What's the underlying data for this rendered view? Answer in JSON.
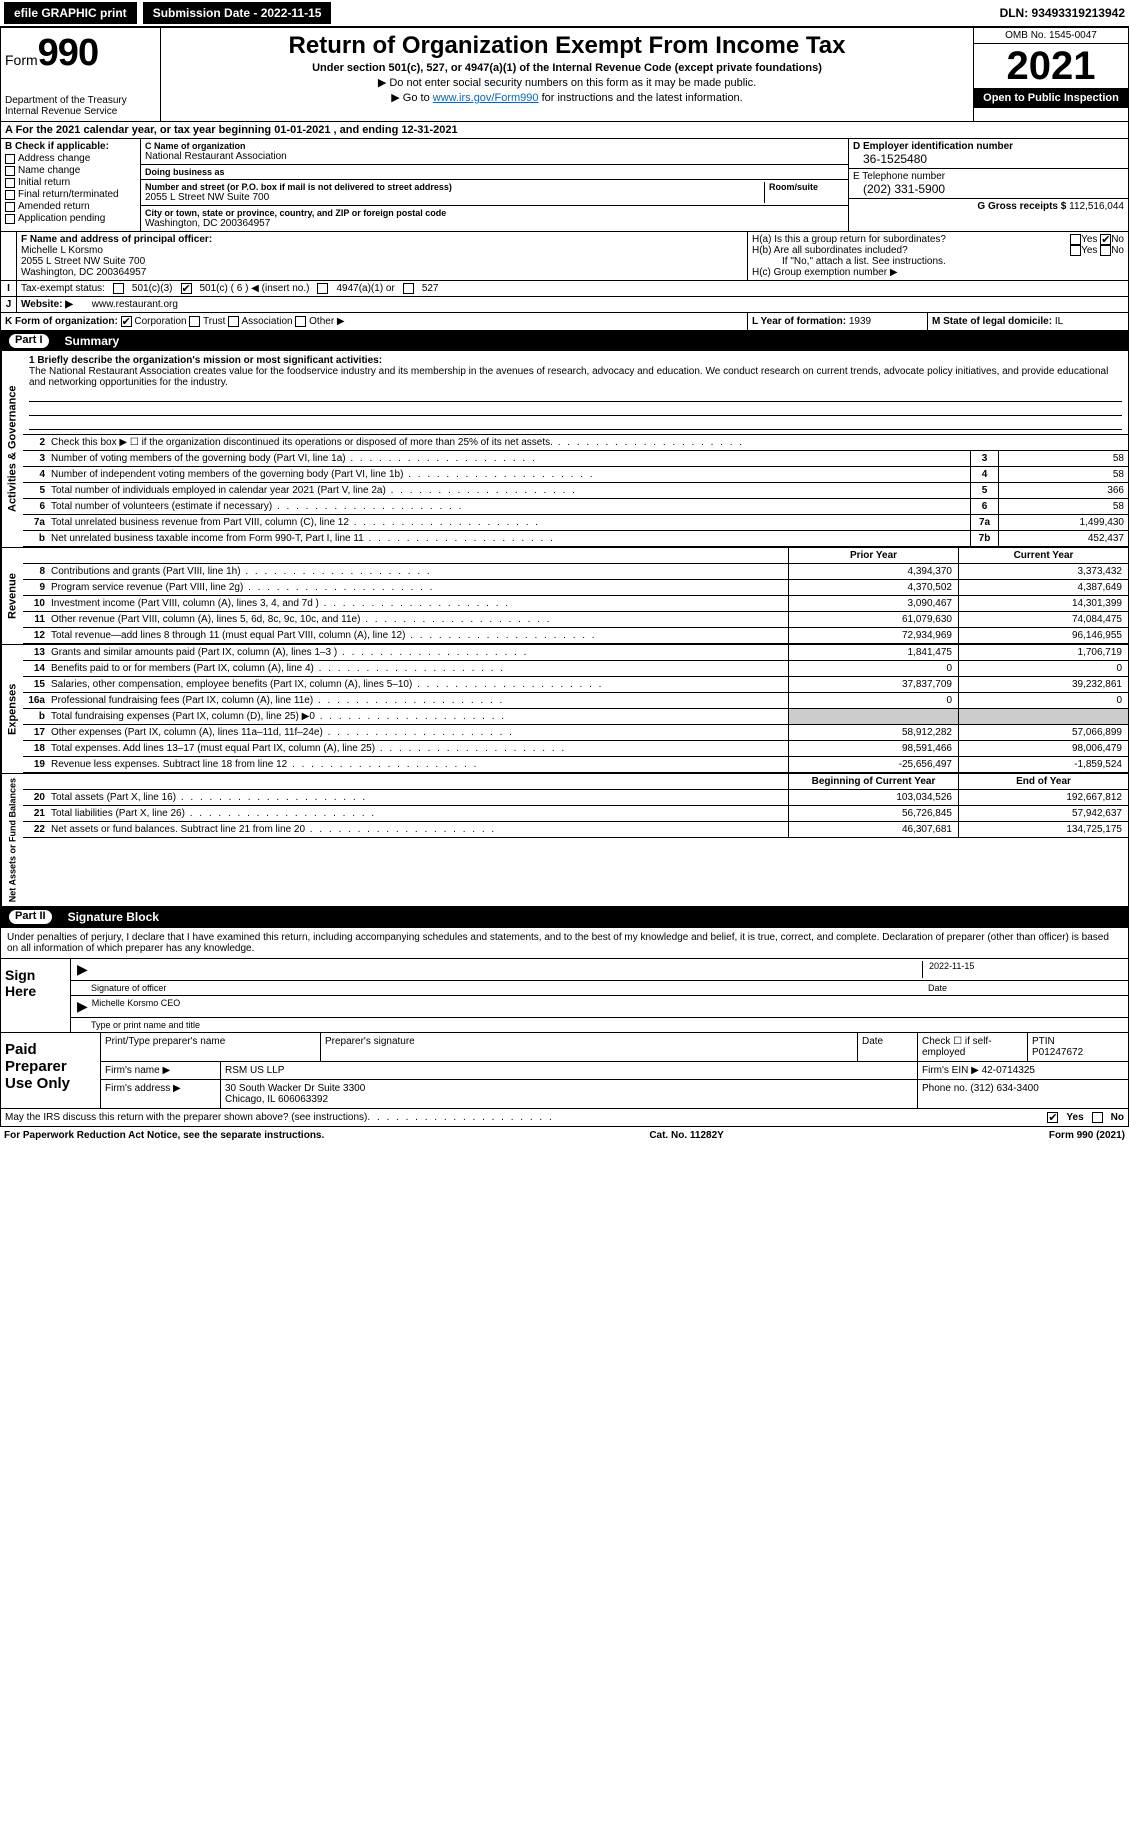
{
  "topbar": {
    "efile_label": "efile GRAPHIC print",
    "submission_label": "Submission Date - 2022-11-15",
    "dln_label": "DLN: 93493319213942"
  },
  "header": {
    "form_label": "Form",
    "form_number": "990",
    "dept": "Department of the Treasury",
    "irs": "Internal Revenue Service",
    "title": "Return of Organization Exempt From Income Tax",
    "subtitle": "Under section 501(c), 527, or 4947(a)(1) of the Internal Revenue Code (except private foundations)",
    "note1": "▶ Do not enter social security numbers on this form as it may be made public.",
    "note2_pre": "▶ Go to ",
    "note2_link": "www.irs.gov/Form990",
    "note2_post": " for instructions and the latest information.",
    "omb": "OMB No. 1545-0047",
    "year": "2021",
    "inspect": "Open to Public Inspection"
  },
  "rowA": "A For the 2021 calendar year, or tax year beginning 01-01-2021    , and ending 12-31-2021",
  "boxB": {
    "title": "B Check if applicable:",
    "items": [
      "Address change",
      "Name change",
      "Initial return",
      "Final return/terminated",
      "Amended return",
      "Application pending"
    ]
  },
  "boxC": {
    "name_lbl": "C Name of organization",
    "name": "National Restaurant Association",
    "dba_lbl": "Doing business as",
    "dba": "",
    "addr_lbl": "Number and street (or P.O. box if mail is not delivered to street address)",
    "room_lbl": "Room/suite",
    "addr": "2055 L Street NW Suite 700",
    "city_lbl": "City or town, state or province, country, and ZIP or foreign postal code",
    "city": "Washington, DC  200364957"
  },
  "boxD": {
    "ein_lbl": "D Employer identification number",
    "ein": "36-1525480",
    "tel_lbl": "E Telephone number",
    "tel": "(202) 331-5900",
    "gross_lbl": "G Gross receipts $",
    "gross": "112,516,044"
  },
  "boxF": {
    "lbl": "F Name and address of principal officer:",
    "name": "Michelle L Korsmo",
    "addr1": "2055 L Street NW Suite 700",
    "addr2": "Washington, DC  200364957"
  },
  "boxH": {
    "a": "H(a)  Is this a group return for subordinates?",
    "b": "H(b)  Are all subordinates included?",
    "b2": "If \"No,\" attach a list. See instructions.",
    "c": "H(c)  Group exemption number ▶",
    "yes": "Yes",
    "no": "No"
  },
  "rowI": {
    "lbl": "Tax-exempt status:",
    "opts": [
      "501(c)(3)",
      "501(c) ( 6 ) ◀ (insert no.)",
      "4947(a)(1) or",
      "527"
    ]
  },
  "rowJ": {
    "lbl": "Website: ▶",
    "val": "www.restaurant.org"
  },
  "rowK": {
    "lbl": "K Form of organization:",
    "opts": [
      "Corporation",
      "Trust",
      "Association",
      "Other ▶"
    ]
  },
  "rowL": {
    "lbl": "L Year of formation:",
    "val": "1939"
  },
  "rowM": {
    "lbl": "M State of legal domicile:",
    "val": "IL"
  },
  "part1": {
    "num": "Part I",
    "title": "Summary"
  },
  "mission": {
    "lbl": "1 Briefly describe the organization's mission or most significant activities:",
    "txt": "The National Restaurant Association creates value for the foodservice industry and its membership in the avenues of research, advocacy and education. We conduct research on current trends, advocate policy initiatives, and provide educational and networking opportunities for the industry."
  },
  "gov_rows": [
    {
      "n": "2",
      "t": "Check this box ▶ ☐  if the organization discontinued its operations or disposed of more than 25% of its net assets.",
      "bn": "",
      "bv": ""
    },
    {
      "n": "3",
      "t": "Number of voting members of the governing body (Part VI, line 1a)",
      "bn": "3",
      "bv": "58"
    },
    {
      "n": "4",
      "t": "Number of independent voting members of the governing body (Part VI, line 1b)",
      "bn": "4",
      "bv": "58"
    },
    {
      "n": "5",
      "t": "Total number of individuals employed in calendar year 2021 (Part V, line 2a)",
      "bn": "5",
      "bv": "366"
    },
    {
      "n": "6",
      "t": "Total number of volunteers (estimate if necessary)",
      "bn": "6",
      "bv": "58"
    },
    {
      "n": "7a",
      "t": "Total unrelated business revenue from Part VIII, column (C), line 12",
      "bn": "7a",
      "bv": "1,499,430"
    },
    {
      "n": "b",
      "t": "Net unrelated business taxable income from Form 990-T, Part I, line 11",
      "bn": "7b",
      "bv": "452,437"
    }
  ],
  "col_hdr": {
    "py": "Prior Year",
    "cy": "Current Year"
  },
  "revenue_rows": [
    {
      "n": "8",
      "t": "Contributions and grants (Part VIII, line 1h)",
      "c1": "4,394,370",
      "c2": "3,373,432"
    },
    {
      "n": "9",
      "t": "Program service revenue (Part VIII, line 2g)",
      "c1": "4,370,502",
      "c2": "4,387,649"
    },
    {
      "n": "10",
      "t": "Investment income (Part VIII, column (A), lines 3, 4, and 7d )",
      "c1": "3,090,467",
      "c2": "14,301,399"
    },
    {
      "n": "11",
      "t": "Other revenue (Part VIII, column (A), lines 5, 6d, 8c, 9c, 10c, and 11e)",
      "c1": "61,079,630",
      "c2": "74,084,475"
    },
    {
      "n": "12",
      "t": "Total revenue—add lines 8 through 11 (must equal Part VIII, column (A), line 12)",
      "c1": "72,934,969",
      "c2": "96,146,955"
    }
  ],
  "expense_rows": [
    {
      "n": "13",
      "t": "Grants and similar amounts paid (Part IX, column (A), lines 1–3 )",
      "c1": "1,841,475",
      "c2": "1,706,719"
    },
    {
      "n": "14",
      "t": "Benefits paid to or for members (Part IX, column (A), line 4)",
      "c1": "0",
      "c2": "0"
    },
    {
      "n": "15",
      "t": "Salaries, other compensation, employee benefits (Part IX, column (A), lines 5–10)",
      "c1": "37,837,709",
      "c2": "39,232,861"
    },
    {
      "n": "16a",
      "t": "Professional fundraising fees (Part IX, column (A), line 11e)",
      "c1": "0",
      "c2": "0"
    },
    {
      "n": "b",
      "t": "Total fundraising expenses (Part IX, column (D), line 25) ▶0",
      "c1": "",
      "c2": ""
    },
    {
      "n": "17",
      "t": "Other expenses (Part IX, column (A), lines 11a–11d, 11f–24e)",
      "c1": "58,912,282",
      "c2": "57,066,899"
    },
    {
      "n": "18",
      "t": "Total expenses. Add lines 13–17 (must equal Part IX, column (A), line 25)",
      "c1": "98,591,466",
      "c2": "98,006,479"
    },
    {
      "n": "19",
      "t": "Revenue less expenses. Subtract line 18 from line 12",
      "c1": "-25,656,497",
      "c2": "-1,859,524"
    }
  ],
  "na_hdr": {
    "c1": "Beginning of Current Year",
    "c2": "End of Year"
  },
  "na_rows": [
    {
      "n": "20",
      "t": "Total assets (Part X, line 16)",
      "c1": "103,034,526",
      "c2": "192,667,812"
    },
    {
      "n": "21",
      "t": "Total liabilities (Part X, line 26)",
      "c1": "56,726,845",
      "c2": "57,942,637"
    },
    {
      "n": "22",
      "t": "Net assets or fund balances. Subtract line 21 from line 20",
      "c1": "46,307,681",
      "c2": "134,725,175"
    }
  ],
  "side_labels": {
    "gov": "Activities & Governance",
    "rev": "Revenue",
    "exp": "Expenses",
    "na": "Net Assets or Fund Balances"
  },
  "part2": {
    "num": "Part II",
    "title": "Signature Block"
  },
  "sig": {
    "penalty": "Under penalties of perjury, I declare that I have examined this return, including accompanying schedules and statements, and to the best of my knowledge and belief, it is true, correct, and complete. Declaration of preparer (other than officer) is based on all information of which preparer has any knowledge.",
    "sign_here": "Sign Here",
    "sig_officer": "Signature of officer",
    "date": "Date",
    "date_val": "2022-11-15",
    "name": "Michelle Korsmo  CEO",
    "name_lbl": "Type or print name and title"
  },
  "prep": {
    "lbl": "Paid Preparer Use Only",
    "h1": "Print/Type preparer's name",
    "h2": "Preparer's signature",
    "h3": "Date",
    "h4": "Check ☐ if self-employed",
    "h5": "PTIN",
    "ptin": "P01247672",
    "firm_lbl": "Firm's name    ▶",
    "firm": "RSM US LLP",
    "ein_lbl": "Firm's EIN ▶",
    "ein": "42-0714325",
    "addr_lbl": "Firm's address ▶",
    "addr1": "30 South Wacker Dr Suite 3300",
    "addr2": "Chicago, IL  606063392",
    "phone_lbl": "Phone no.",
    "phone": "(312) 634-3400"
  },
  "discuss": "May the IRS discuss this return with the preparer shown above? (see instructions)",
  "footer": {
    "pra": "For Paperwork Reduction Act Notice, see the separate instructions.",
    "cat": "Cat. No. 11282Y",
    "form": "Form 990 (2021)"
  }
}
